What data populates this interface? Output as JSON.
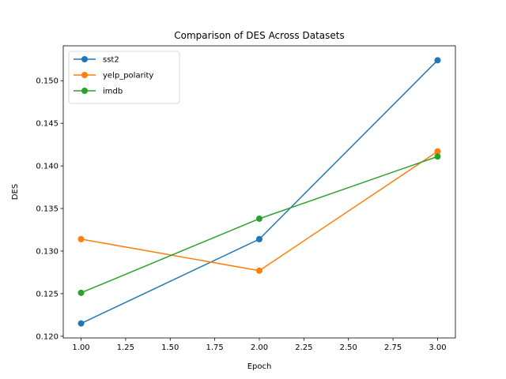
{
  "chart_data": {
    "type": "line",
    "title": "Comparison of DES Across Datasets",
    "xlabel": "Epoch",
    "ylabel": "DES",
    "xlim": [
      0.9,
      3.1
    ],
    "ylim": [
      0.1198,
      0.1541
    ],
    "xticks": [
      1.0,
      1.25,
      1.5,
      1.75,
      2.0,
      2.25,
      2.5,
      2.75,
      3.0
    ],
    "xtick_labels": [
      "1.00",
      "1.25",
      "1.50",
      "1.75",
      "2.00",
      "2.25",
      "2.50",
      "2.75",
      "3.00"
    ],
    "yticks": [
      0.12,
      0.125,
      0.13,
      0.135,
      0.14,
      0.145,
      0.15
    ],
    "ytick_labels": [
      "0.120",
      "0.125",
      "0.130",
      "0.135",
      "0.140",
      "0.145",
      "0.150"
    ],
    "x": [
      1,
      2,
      3
    ],
    "series": [
      {
        "name": "sst2",
        "color": "#1f77b4",
        "values": [
          0.1215,
          0.1314,
          0.1524
        ]
      },
      {
        "name": "yelp_polarity",
        "color": "#ff7f0e",
        "values": [
          0.1314,
          0.1277,
          0.1417
        ]
      },
      {
        "name": "imdb",
        "color": "#2ca02c",
        "values": [
          0.1251,
          0.1338,
          0.1411
        ]
      }
    ],
    "grid": false,
    "legend_position": "top-left",
    "markers": "circle"
  }
}
